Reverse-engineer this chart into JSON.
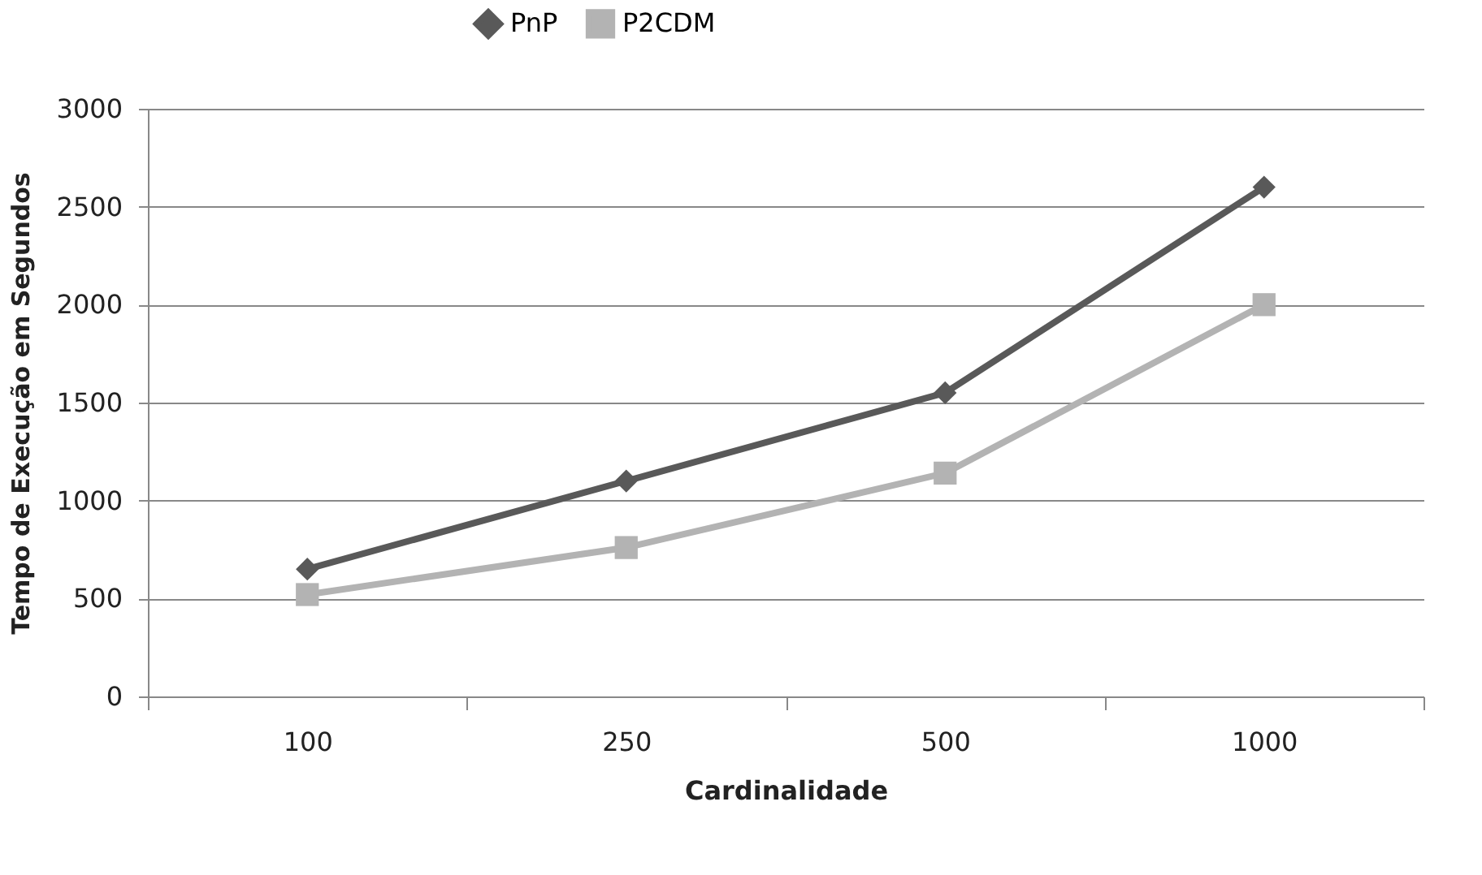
{
  "chart_data": {
    "type": "line",
    "xlabel": "Cardinalidade",
    "ylabel": "Tempo de Execução  em Segundos",
    "categories": [
      "100",
      "250",
      "500",
      "1000"
    ],
    "series": [
      {
        "name": "PnP",
        "color": "#595959",
        "marker": "diamond",
        "values": [
          650,
          1100,
          1550,
          2600
        ]
      },
      {
        "name": "P2CDM",
        "color": "#b3b3b3",
        "marker": "square",
        "values": [
          520,
          760,
          1140,
          2000
        ]
      }
    ],
    "ylim": [
      0,
      3000
    ],
    "yticks": [
      0,
      500,
      1000,
      1500,
      2000,
      2500,
      3000
    ],
    "grid": "y",
    "legend": "top",
    "line_style": "solid"
  }
}
